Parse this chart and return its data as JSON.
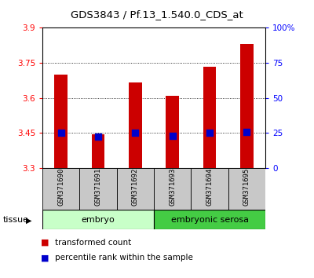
{
  "title": "GDS3843 / Pf.13_1.540.0_CDS_at",
  "samples": [
    "GSM371690",
    "GSM371691",
    "GSM371692",
    "GSM371693",
    "GSM371694",
    "GSM371695"
  ],
  "transformed_counts": [
    3.7,
    3.445,
    3.665,
    3.61,
    3.735,
    3.83
  ],
  "percentile_ranks": [
    3.45,
    3.435,
    3.45,
    3.438,
    3.45,
    3.455
  ],
  "ylim_left": [
    3.3,
    3.9
  ],
  "yticks_left": [
    3.3,
    3.45,
    3.6,
    3.75,
    3.9
  ],
  "ytick_labels_left": [
    "3.3",
    "3.45",
    "3.6",
    "3.75",
    "3.9"
  ],
  "ylim_right": [
    0,
    100
  ],
  "yticks_right": [
    0,
    25,
    50,
    75,
    100
  ],
  "ytick_labels_right": [
    "0",
    "25",
    "50",
    "75",
    "100%"
  ],
  "groups": [
    {
      "label": "embryo",
      "indices": [
        0,
        1,
        2
      ],
      "color": "#c8ffc8"
    },
    {
      "label": "embryonic serosa",
      "indices": [
        3,
        4,
        5
      ],
      "color": "#44cc44"
    }
  ],
  "bar_color": "#cc0000",
  "dot_color": "#0000cc",
  "grid_color": "#000000",
  "sample_bg_color": "#c8c8c8",
  "tissue_label": "tissue",
  "legend_items": [
    {
      "label": "transformed count",
      "color": "#cc0000"
    },
    {
      "label": "percentile rank within the sample",
      "color": "#0000cc"
    }
  ],
  "bar_width": 0.35,
  "dot_size": 40
}
